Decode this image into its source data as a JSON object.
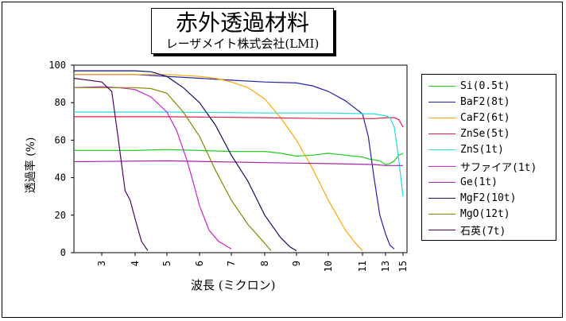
{
  "chart_data": {
    "type": "line",
    "title": "赤外透過材料",
    "subtitle": "レーザメイト株式会社(LMI)",
    "xlabel": "波長 (ミクロン)",
    "ylabel": "透過率 (%)",
    "x_ticks": [
      "3",
      "4",
      "5",
      "6",
      "7",
      "8",
      "9",
      "10",
      "11",
      "13",
      "15"
    ],
    "y_ticks": [
      "0",
      "20",
      "40",
      "60",
      "80",
      "100"
    ],
    "ylim": [
      0,
      100
    ],
    "legend_position": "right",
    "series": [
      {
        "name": "Si(0.5t)",
        "color": "#22cc22",
        "points": [
          [
            2.5,
            54.5
          ],
          [
            4,
            54.5
          ],
          [
            5,
            55
          ],
          [
            6,
            54.5
          ],
          [
            7,
            54
          ],
          [
            8,
            54
          ],
          [
            8.5,
            53
          ],
          [
            9,
            51.5
          ],
          [
            9.5,
            52
          ],
          [
            10,
            53
          ],
          [
            10.5,
            52
          ],
          [
            11,
            51
          ],
          [
            11.5,
            50
          ],
          [
            12,
            49.5
          ],
          [
            12.5,
            49
          ],
          [
            13,
            47
          ],
          [
            13.5,
            47.5
          ],
          [
            14,
            49
          ],
          [
            14.5,
            52
          ],
          [
            15,
            53
          ]
        ]
      },
      {
        "name": "BaF2(8t)",
        "color": "#2222aa",
        "points": [
          [
            2.5,
            95
          ],
          [
            4,
            95
          ],
          [
            5,
            94
          ],
          [
            6,
            93
          ],
          [
            7,
            92
          ],
          [
            8,
            91
          ],
          [
            9,
            90.5
          ],
          [
            9.5,
            89
          ],
          [
            10,
            86
          ],
          [
            10.5,
            81
          ],
          [
            11,
            74
          ],
          [
            11.5,
            62
          ],
          [
            12,
            40
          ],
          [
            12.5,
            20
          ],
          [
            13,
            10
          ],
          [
            13.5,
            4
          ],
          [
            14,
            2
          ]
        ]
      },
      {
        "name": "CaF2(6t)",
        "color": "#ffa500",
        "points": [
          [
            2.5,
            95
          ],
          [
            5,
            95
          ],
          [
            6,
            94
          ],
          [
            6.5,
            93
          ],
          [
            7,
            91
          ],
          [
            7.5,
            88
          ],
          [
            8,
            82
          ],
          [
            8.5,
            72
          ],
          [
            9,
            60
          ],
          [
            9.5,
            45
          ],
          [
            10,
            28
          ],
          [
            10.5,
            12
          ],
          [
            10.8,
            5
          ],
          [
            11,
            1
          ]
        ]
      },
      {
        "name": "ZnSe(5t)",
        "color": "#dd2244",
        "points": [
          [
            2.5,
            72.5
          ],
          [
            5,
            72.5
          ],
          [
            8,
            72
          ],
          [
            10,
            71.5
          ],
          [
            12,
            71.5
          ],
          [
            13,
            72
          ],
          [
            13.5,
            72
          ],
          [
            14,
            72
          ],
          [
            14.5,
            71
          ],
          [
            15,
            67
          ]
        ]
      },
      {
        "name": "ZnS(1t)",
        "color": "#22dddd",
        "points": [
          [
            2.5,
            75
          ],
          [
            5,
            75
          ],
          [
            8,
            74.5
          ],
          [
            10,
            74.5
          ],
          [
            12,
            74
          ],
          [
            13,
            73
          ],
          [
            13.5,
            72
          ],
          [
            14,
            67
          ],
          [
            14.5,
            50
          ],
          [
            15,
            30
          ]
        ]
      },
      {
        "name": "サファイア(1t)",
        "color": "#cc22cc",
        "points": [
          [
            2.5,
            88
          ],
          [
            3,
            88.5
          ],
          [
            3.5,
            88
          ],
          [
            4,
            87
          ],
          [
            4.5,
            83
          ],
          [
            5,
            75
          ],
          [
            5.3,
            65
          ],
          [
            5.6,
            50
          ],
          [
            5.8,
            38
          ],
          [
            6,
            25
          ],
          [
            6.3,
            12
          ],
          [
            6.6,
            6
          ],
          [
            6.9,
            3
          ],
          [
            7,
            2
          ]
        ]
      },
      {
        "name": "Ge(1t)",
        "color": "#aa22aa",
        "points": [
          [
            2.5,
            48.5
          ],
          [
            5,
            49
          ],
          [
            8,
            48
          ],
          [
            10,
            47.5
          ],
          [
            12,
            47
          ],
          [
            13,
            46.5
          ],
          [
            15,
            46.5
          ]
        ]
      },
      {
        "name": "MgF2(10t)",
        "color": "#111166",
        "points": [
          [
            2.5,
            97
          ],
          [
            4,
            97
          ],
          [
            4.5,
            96.5
          ],
          [
            5,
            94
          ],
          [
            5.5,
            88
          ],
          [
            6,
            80
          ],
          [
            6.5,
            68
          ],
          [
            7,
            52
          ],
          [
            7.5,
            38
          ],
          [
            8,
            20
          ],
          [
            8.5,
            8
          ],
          [
            8.8,
            3
          ],
          [
            9,
            1
          ]
        ]
      },
      {
        "name": "MgO(12t)",
        "color": "#888800",
        "points": [
          [
            2.5,
            88
          ],
          [
            4,
            88
          ],
          [
            4.5,
            87.5
          ],
          [
            5,
            85
          ],
          [
            5.5,
            75
          ],
          [
            6,
            62
          ],
          [
            6.5,
            44
          ],
          [
            7,
            28
          ],
          [
            7.5,
            15
          ],
          [
            8,
            5
          ],
          [
            8.2,
            1
          ]
        ]
      },
      {
        "name": "石英(7t)",
        "color": "#550066",
        "points": [
          [
            2.5,
            93
          ],
          [
            3,
            91
          ],
          [
            3.3,
            86
          ],
          [
            3.5,
            60
          ],
          [
            3.7,
            33
          ],
          [
            3.85,
            28
          ],
          [
            4,
            18
          ],
          [
            4.2,
            6
          ],
          [
            4.4,
            1
          ]
        ]
      }
    ]
  }
}
